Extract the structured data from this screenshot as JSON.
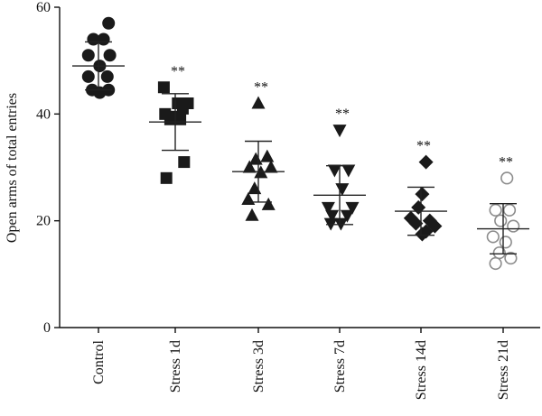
{
  "chart_data": {
    "type": "scatter",
    "title": "",
    "xlabel": "",
    "ylabel": "Open arms of total entries",
    "ylim": [
      0,
      60
    ],
    "yticks": [
      0,
      20,
      40,
      60
    ],
    "grid": false,
    "categories": [
      "Control",
      "Stress 1d",
      "Stress 3d",
      "Stress 7d",
      "Stress 14d",
      "Stress 21d"
    ],
    "series": [
      {
        "category": "Control",
        "marker": "circle",
        "filled": true,
        "color": "#1a1a1a",
        "points": [
          {
            "j": 0.4,
            "y": 57.0
          },
          {
            "j": -0.2,
            "y": 54.0
          },
          {
            "j": 0.2,
            "y": 54.0
          },
          {
            "j": -0.4,
            "y": 51.0
          },
          {
            "j": 0.45,
            "y": 51.0
          },
          {
            "j": 0.05,
            "y": 49.0
          },
          {
            "j": -0.4,
            "y": 47.0
          },
          {
            "j": 0.35,
            "y": 47.0
          },
          {
            "j": -0.25,
            "y": 44.5
          },
          {
            "j": 0.05,
            "y": 44.0
          },
          {
            "j": 0.4,
            "y": 44.5
          }
        ],
        "mean": 49.0,
        "sd": 4.5,
        "significance": ""
      },
      {
        "category": "Stress 1d",
        "marker": "square",
        "filled": true,
        "color": "#1a1a1a",
        "points": [
          {
            "j": -0.45,
            "y": 45.0
          },
          {
            "j": 0.1,
            "y": 42.0
          },
          {
            "j": 0.5,
            "y": 42.0
          },
          {
            "j": 0.3,
            "y": 41.0
          },
          {
            "j": -0.4,
            "y": 40.0
          },
          {
            "j": 0.0,
            "y": 39.5
          },
          {
            "j": -0.2,
            "y": 39.0
          },
          {
            "j": 0.2,
            "y": 39.0
          },
          {
            "j": 0.35,
            "y": 31.0
          },
          {
            "j": -0.35,
            "y": 28.0
          }
        ],
        "mean": 38.5,
        "sd": 5.3,
        "significance": "**"
      },
      {
        "category": "Stress 3d",
        "marker": "triangle-up",
        "filled": true,
        "color": "#1a1a1a",
        "points": [
          {
            "j": 0.0,
            "y": 42.0
          },
          {
            "j": 0.35,
            "y": 32.0
          },
          {
            "j": -0.1,
            "y": 31.5
          },
          {
            "j": -0.35,
            "y": 30.0
          },
          {
            "j": 0.5,
            "y": 30.0
          },
          {
            "j": 0.1,
            "y": 29.0
          },
          {
            "j": -0.15,
            "y": 26.0
          },
          {
            "j": -0.4,
            "y": 24.0
          },
          {
            "j": 0.4,
            "y": 23.0
          },
          {
            "j": -0.25,
            "y": 21.0
          }
        ],
        "mean": 29.2,
        "sd": 5.7,
        "significance": "**"
      },
      {
        "category": "Stress 7d",
        "marker": "triangle-down",
        "filled": true,
        "color": "#1a1a1a",
        "points": [
          {
            "j": 0.0,
            "y": 37.0
          },
          {
            "j": -0.2,
            "y": 29.5
          },
          {
            "j": 0.35,
            "y": 29.5
          },
          {
            "j": 0.1,
            "y": 26.0
          },
          {
            "j": -0.45,
            "y": 22.5
          },
          {
            "j": 0.5,
            "y": 22.5
          },
          {
            "j": -0.3,
            "y": 21.0
          },
          {
            "j": 0.3,
            "y": 21.0
          },
          {
            "j": -0.35,
            "y": 19.5
          },
          {
            "j": 0.05,
            "y": 19.5
          }
        ],
        "mean": 24.8,
        "sd": 5.5,
        "significance": "**"
      },
      {
        "category": "Stress 14d",
        "marker": "diamond",
        "filled": true,
        "color": "#1a1a1a",
        "points": [
          {
            "j": 0.2,
            "y": 31.0
          },
          {
            "j": 0.05,
            "y": 25.0
          },
          {
            "j": -0.1,
            "y": 22.5
          },
          {
            "j": -0.4,
            "y": 20.5
          },
          {
            "j": 0.35,
            "y": 20.0
          },
          {
            "j": 0.55,
            "y": 19.0
          },
          {
            "j": -0.2,
            "y": 19.5
          },
          {
            "j": 0.2,
            "y": 18.0
          },
          {
            "j": 0.05,
            "y": 17.5
          }
        ],
        "mean": 21.8,
        "sd": 4.5,
        "significance": "**"
      },
      {
        "category": "Stress 21d",
        "marker": "circle",
        "filled": false,
        "color": "#8c8c8c",
        "points": [
          {
            "j": 0.15,
            "y": 28.0
          },
          {
            "j": -0.3,
            "y": 22.0
          },
          {
            "j": 0.25,
            "y": 22.0
          },
          {
            "j": -0.1,
            "y": 20.0
          },
          {
            "j": 0.4,
            "y": 19.0
          },
          {
            "j": -0.4,
            "y": 17.0
          },
          {
            "j": 0.1,
            "y": 16.0
          },
          {
            "j": -0.15,
            "y": 14.0
          },
          {
            "j": 0.3,
            "y": 13.0
          },
          {
            "j": -0.3,
            "y": 12.0
          }
        ],
        "mean": 18.5,
        "sd": 4.7,
        "significance": "**"
      }
    ]
  }
}
